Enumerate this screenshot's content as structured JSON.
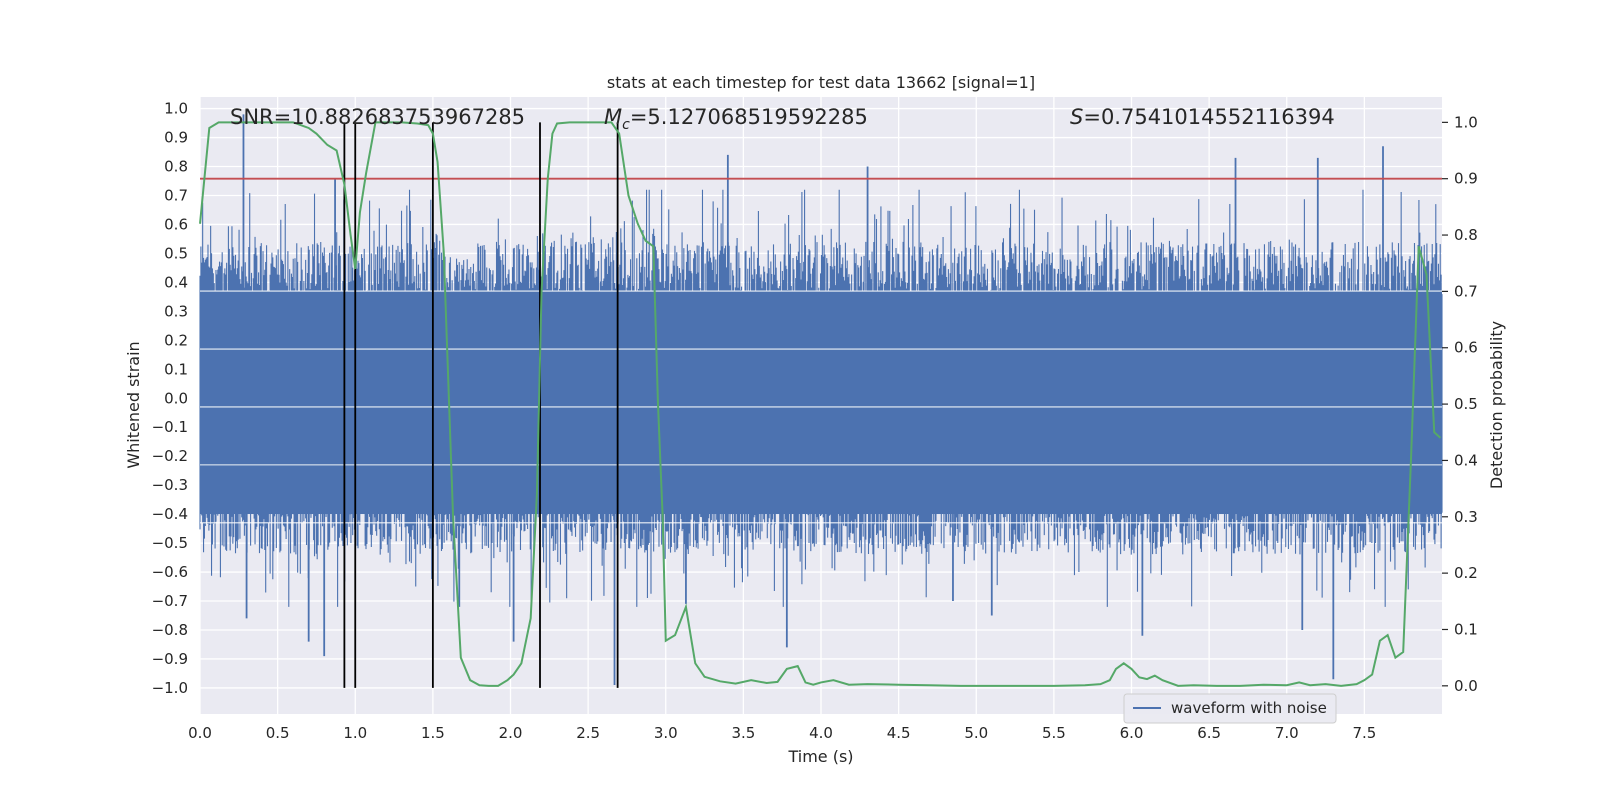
{
  "chart_data": {
    "type": "line",
    "title": "stats at each timestep for test data 13662 [signal=1]",
    "xlabel": "Time (s)",
    "ylabel_left": "Whitened strain",
    "ylabel_right": "Detection probability",
    "xlim": [
      0.0,
      8.0
    ],
    "ylim_left": [
      -1.09,
      1.04
    ],
    "ylim_right": [
      -0.05,
      1.045
    ],
    "x_ticks": [
      "0.0",
      "0.5",
      "1.0",
      "1.5",
      "2.0",
      "2.5",
      "3.0",
      "3.5",
      "4.0",
      "4.5",
      "5.0",
      "5.5",
      "6.0",
      "6.5",
      "7.0",
      "7.5"
    ],
    "x_tick_values": [
      0,
      0.5,
      1,
      1.5,
      2,
      2.5,
      3,
      3.5,
      4,
      4.5,
      5,
      5.5,
      6,
      6.5,
      7,
      7.5
    ],
    "y_left_ticks": [
      "1.0",
      "0.9",
      "0.8",
      "0.7",
      "0.6",
      "0.5",
      "0.4",
      "0.3",
      "0.2",
      "0.1",
      "0.0",
      "−0.1",
      "−0.2",
      "−0.3",
      "−0.4",
      "−0.5",
      "−0.6",
      "−0.7",
      "−0.8",
      "−0.9",
      "−1.0"
    ],
    "y_left_tick_values": [
      1.0,
      0.9,
      0.8,
      0.7,
      0.6,
      0.5,
      0.4,
      0.3,
      0.2,
      0.1,
      0.0,
      -0.1,
      -0.2,
      -0.3,
      -0.4,
      -0.5,
      -0.6,
      -0.7,
      -0.8,
      -0.9,
      -1.0
    ],
    "y_right_ticks": [
      "1.0",
      "0.9",
      "0.8",
      "0.7",
      "0.6",
      "0.5",
      "0.4",
      "0.3",
      "0.2",
      "0.1",
      "0.0"
    ],
    "y_right_tick_values": [
      1.0,
      0.9,
      0.8,
      0.7,
      0.6,
      0.5,
      0.4,
      0.3,
      0.2,
      0.1,
      0.0
    ],
    "annotations": {
      "snr": "SNR=10.882683753967285",
      "mc_symbol": "M",
      "mc_subscript": "c",
      "mc_value": "=5.127068519592285",
      "s_symbol": "S",
      "s_value": "=0.7541014552116394"
    },
    "legend": {
      "label": "waveform with noise",
      "placement": "lower-right"
    },
    "threshold_line": {
      "value": 0.9,
      "axis": "right",
      "color": "#c44e52"
    },
    "event_markers_x": [
      0.93,
      1.0,
      1.5,
      2.19,
      2.69
    ],
    "waveform": {
      "name": "waveform with noise",
      "color": "#4c72b0",
      "x_range": [
        0.0,
        8.0
      ],
      "samples": 1400,
      "core_envelope": 0.4,
      "spikes": [
        {
          "x": 0.28,
          "y": 0.98
        },
        {
          "x": 0.3,
          "y": -0.76
        },
        {
          "x": 0.7,
          "y": -0.84
        },
        {
          "x": 0.8,
          "y": -0.89
        },
        {
          "x": 0.87,
          "y": 0.76
        },
        {
          "x": 2.02,
          "y": -0.84
        },
        {
          "x": 2.67,
          "y": -0.99
        },
        {
          "x": 3.4,
          "y": 0.84
        },
        {
          "x": 3.13,
          "y": -0.71
        },
        {
          "x": 3.78,
          "y": -0.86
        },
        {
          "x": 4.3,
          "y": 0.8
        },
        {
          "x": 5.1,
          "y": -0.75
        },
        {
          "x": 6.07,
          "y": -0.82
        },
        {
          "x": 6.67,
          "y": 0.83
        },
        {
          "x": 7.2,
          "y": 0.83
        },
        {
          "x": 7.3,
          "y": -0.97
        },
        {
          "x": 7.62,
          "y": 0.87
        },
        {
          "x": 7.1,
          "y": -0.8
        },
        {
          "x": 4.85,
          "y": -0.7
        },
        {
          "x": 1.67,
          "y": -0.72
        }
      ]
    },
    "probability": {
      "name": "detection probability",
      "color": "#55a868",
      "x": [
        0.0,
        0.06,
        0.12,
        0.2,
        0.3,
        0.4,
        0.5,
        0.6,
        0.7,
        0.75,
        0.82,
        0.88,
        0.93,
        0.97,
        1.0,
        1.03,
        1.07,
        1.13,
        1.2,
        1.3,
        1.4,
        1.47,
        1.5,
        1.53,
        1.57,
        1.63,
        1.68,
        1.74,
        1.8,
        1.86,
        1.92,
        1.98,
        2.02,
        2.07,
        2.13,
        2.17,
        2.2,
        2.24,
        2.27,
        2.3,
        2.38,
        2.48,
        2.58,
        2.65,
        2.7,
        2.76,
        2.82,
        2.87,
        2.92,
        2.95,
        2.98,
        3.0,
        3.06,
        3.13,
        3.19,
        3.25,
        3.35,
        3.45,
        3.55,
        3.65,
        3.72,
        3.78,
        3.85,
        3.9,
        3.95,
        4.0,
        4.08,
        4.18,
        4.3,
        4.5,
        4.7,
        4.9,
        5.1,
        5.3,
        5.5,
        5.7,
        5.8,
        5.86,
        5.9,
        5.95,
        6.0,
        6.05,
        6.1,
        6.15,
        6.2,
        6.3,
        6.4,
        6.55,
        6.7,
        6.85,
        7.0,
        7.08,
        7.15,
        7.25,
        7.35,
        7.45,
        7.5,
        7.55,
        7.6,
        7.65,
        7.7,
        7.75,
        7.8,
        7.85,
        7.9,
        7.95,
        7.99
      ],
      "y": [
        0.82,
        0.99,
        1.0,
        1.0,
        1.0,
        1.0,
        1.0,
        1.0,
        0.99,
        0.98,
        0.96,
        0.95,
        0.89,
        0.8,
        0.74,
        0.84,
        0.91,
        1.0,
        1.0,
        1.0,
        0.998,
        0.995,
        0.98,
        0.93,
        0.77,
        0.3,
        0.05,
        0.01,
        0.001,
        0.0,
        0.0,
        0.01,
        0.02,
        0.04,
        0.12,
        0.34,
        0.7,
        0.9,
        0.98,
        0.998,
        1.0,
        1.0,
        1.0,
        1.0,
        0.98,
        0.87,
        0.82,
        0.79,
        0.78,
        0.5,
        0.3,
        0.08,
        0.09,
        0.14,
        0.04,
        0.016,
        0.008,
        0.004,
        0.01,
        0.005,
        0.007,
        0.03,
        0.035,
        0.006,
        0.002,
        0.006,
        0.01,
        0.002,
        0.003,
        0.002,
        0.001,
        0.0,
        0.0,
        0.0,
        0.0,
        0.001,
        0.003,
        0.01,
        0.03,
        0.04,
        0.03,
        0.015,
        0.012,
        0.018,
        0.01,
        0.0,
        0.001,
        0.0,
        0.0,
        0.002,
        0.001,
        0.006,
        0.001,
        0.003,
        0.0,
        0.003,
        0.01,
        0.02,
        0.08,
        0.09,
        0.05,
        0.06,
        0.4,
        0.78,
        0.73,
        0.45,
        0.44
      ]
    }
  }
}
